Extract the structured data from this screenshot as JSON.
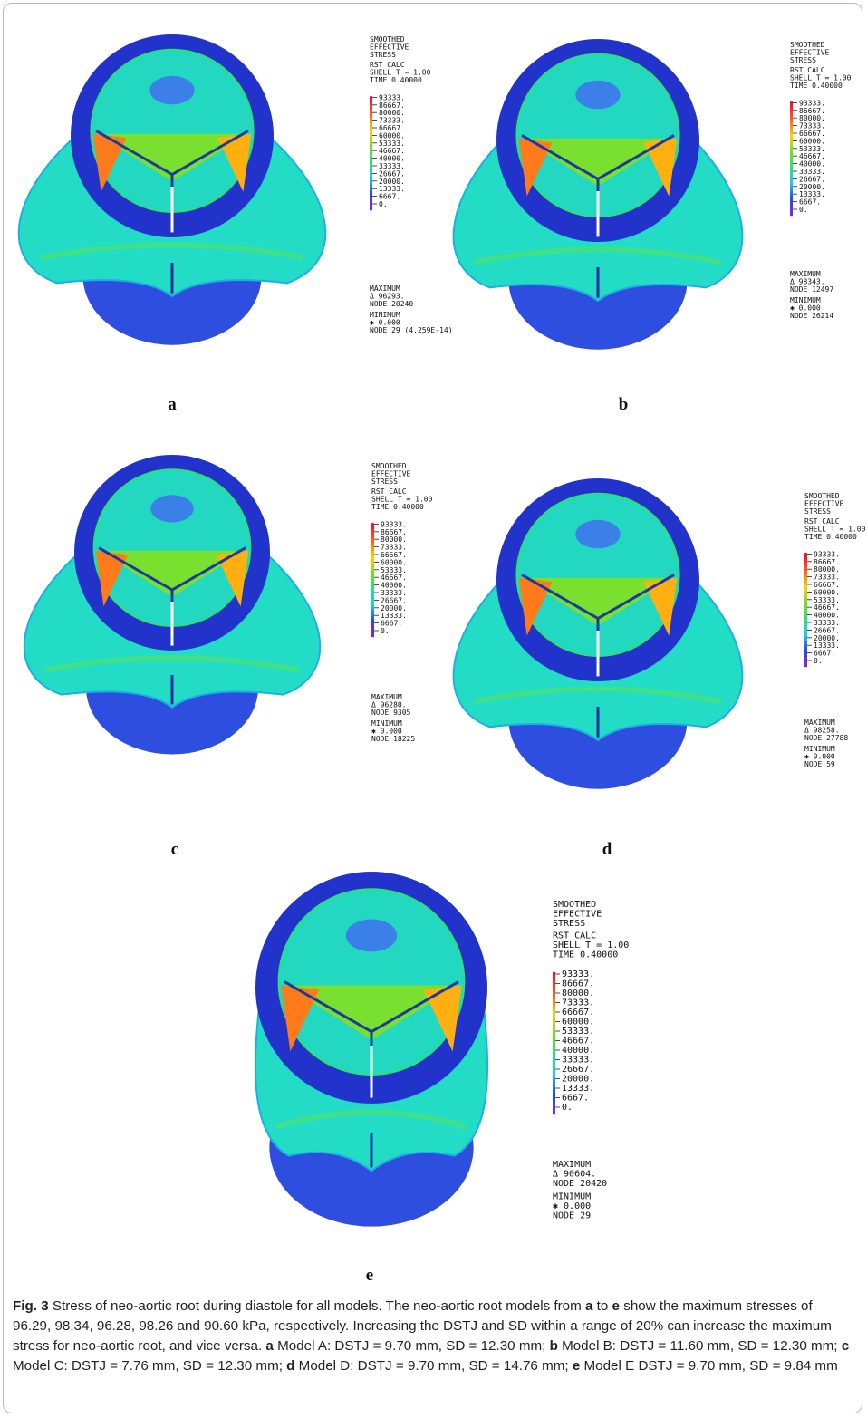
{
  "figure": {
    "panels": [
      {
        "label": "a",
        "header": [
          "SMOOTHED",
          "EFFECTIVE",
          "STRESS",
          "RST CALC",
          "SHELL T = 1.00",
          "TIME 0.40000"
        ],
        "ticks": [
          "93333.",
          "86667.",
          "80000.",
          "73333.",
          "66667.",
          "60000.",
          "53333.",
          "46667.",
          "40000.",
          "33333.",
          "26667.",
          "20000.",
          "13333.",
          "6667.",
          "0."
        ],
        "footer": [
          "MAXIMUM",
          "Δ 96293.",
          "NODE 20240",
          "MINIMUM",
          "✱ 0.000",
          "NODE 29 (4.259E-14)"
        ]
      },
      {
        "label": "b",
        "header": [
          "SMOOTHED",
          "EFFECTIVE",
          "STRESS",
          "RST CALC",
          "SHELL T = 1.00",
          "TIME 0.40000"
        ],
        "ticks": [
          "93333.",
          "86667.",
          "80000.",
          "73333.",
          "66667.",
          "60000.",
          "53333.",
          "46667.",
          "40000.",
          "33333.",
          "26667.",
          "20000.",
          "13333.",
          "6667.",
          "0."
        ],
        "footer": [
          "MAXIMUM",
          "Δ 98343.",
          "NODE 12497",
          "MINIMUM",
          "✱ 0.000",
          "NODE 26214"
        ]
      },
      {
        "label": "c",
        "header": [
          "SMOOTHED",
          "EFFECTIVE",
          "STRESS",
          "RST CALC",
          "SHELL T = 1.00",
          "TIME 0.40000"
        ],
        "ticks": [
          "93333.",
          "86667.",
          "80000.",
          "73333.",
          "66667.",
          "60000.",
          "53333.",
          "46667.",
          "40000.",
          "33333.",
          "26667.",
          "20000.",
          "13333.",
          "6667.",
          "0."
        ],
        "footer": [
          "MAXIMUM",
          "Δ 96280.",
          "NODE 9305",
          "MINIMUM",
          "✱ 0.000",
          "NODE 18225"
        ]
      },
      {
        "label": "d",
        "header": [
          "SMOOTHED",
          "EFFECTIVE",
          "STRESS",
          "RST CALC",
          "SHELL T = 1.00",
          "TIME 0.40000"
        ],
        "ticks": [
          "93333.",
          "86667.",
          "80000.",
          "73333.",
          "66667.",
          "60000.",
          "53333.",
          "46667.",
          "40000.",
          "33333.",
          "26667.",
          "20000.",
          "13333.",
          "6667.",
          "0."
        ],
        "footer": [
          "MAXIMUM",
          "Δ 98258.",
          "NODE 27788",
          "MINIMUM",
          "✱ 0.000",
          "NODE 59"
        ]
      },
      {
        "label": "e",
        "header": [
          "SMOOTHED",
          "EFFECTIVE",
          "STRESS",
          "RST CALC",
          "SHELL T = 1.00",
          "TIME 0.40000"
        ],
        "ticks": [
          "93333.",
          "86667.",
          "80000.",
          "73333.",
          "66667.",
          "60000.",
          "53333.",
          "46667.",
          "40000.",
          "33333.",
          "26667.",
          "20000.",
          "13333.",
          "6667.",
          "0."
        ],
        "footer": [
          "MAXIMUM",
          "Δ 90604.",
          "NODE 20420",
          "MINIMUM",
          "✱ 0.000",
          "NODE 29"
        ]
      }
    ],
    "caption": [
      {
        "text": "Fig. 3",
        "bold": true
      },
      {
        "text": "  Stress of neo-aortic root during diastole for all models. The neo-aortic root models from "
      },
      {
        "text": "a",
        "bold": true
      },
      {
        "text": " to "
      },
      {
        "text": "e",
        "bold": true
      },
      {
        "text": " show the maximum stresses of 96.29, 98.34, 96.28, 98.26 and 90.60 kPa, respectively. Increasing the DSTJ and SD within a range of 20% can increase the maximum stress for neo-aortic root, and vice versa. "
      },
      {
        "text": "a",
        "bold": true
      },
      {
        "text": " Model A: DSTJ = 9.70 mm, SD = 12.30 mm; "
      },
      {
        "text": "b",
        "bold": true
      },
      {
        "text": " Model B: DSTJ = 11.60 mm, SD = 12.30 mm; "
      },
      {
        "text": "c",
        "bold": true
      },
      {
        "text": " Model C: DSTJ = 7.76 mm, SD = 12.30 mm; "
      },
      {
        "text": "d",
        "bold": true
      },
      {
        "text": " Model D: DSTJ = 9.70 mm, SD = 14.76 mm; "
      },
      {
        "text": "e",
        "bold": true
      },
      {
        "text": " Model E DSTJ = 9.70 mm, SD = 9.84 mm"
      }
    ]
  }
}
